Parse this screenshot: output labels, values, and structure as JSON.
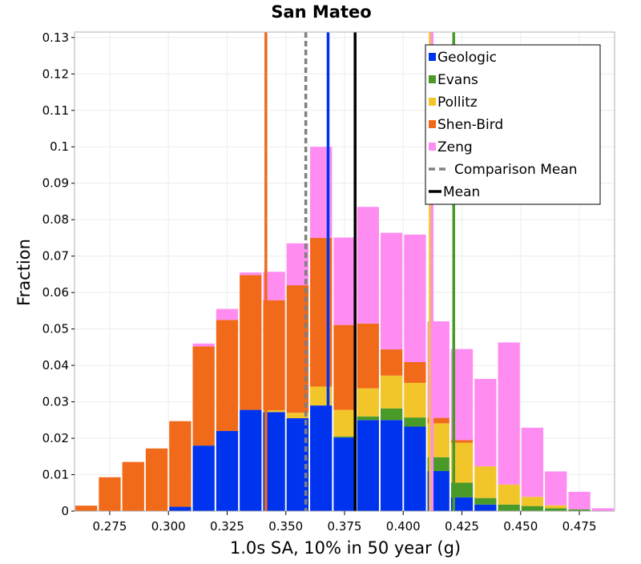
{
  "chart_data": {
    "type": "bar",
    "stacked": true,
    "title": "San Mateo",
    "xlabel": "1.0s SA, 10% in 50 year (g)",
    "ylabel": "Fraction",
    "xlim": [
      0.26,
      0.49
    ],
    "ylim": [
      0,
      0.1315
    ],
    "bin_width": 0.01,
    "grid": true,
    "legend_position": "top-right",
    "x_ticks": [
      0.275,
      0.3,
      0.325,
      0.35,
      0.375,
      0.4,
      0.425,
      0.45,
      0.475
    ],
    "x_tick_labels": [
      "0.275",
      "0.300",
      "0.325",
      "0.350",
      "0.375",
      "0.400",
      "0.425",
      "0.450",
      "0.475"
    ],
    "y_ticks": [
      0,
      0.01,
      0.02,
      0.03,
      0.04,
      0.05,
      0.06,
      0.07,
      0.08,
      0.09,
      0.1,
      0.11,
      0.12,
      0.13
    ],
    "y_tick_labels": [
      "0",
      "0.01",
      "0.02",
      "0.03",
      "0.04",
      "0.05",
      "0.06",
      "0.07",
      "0.08",
      "0.09",
      "0.1",
      "0.11",
      "0.12",
      "0.13"
    ],
    "bin_centers": [
      0.265,
      0.275,
      0.285,
      0.295,
      0.305,
      0.315,
      0.325,
      0.335,
      0.345,
      0.355,
      0.365,
      0.375,
      0.385,
      0.395,
      0.405,
      0.415,
      0.425,
      0.435,
      0.445,
      0.455,
      0.465,
      0.475,
      0.485
    ],
    "series": [
      {
        "name": "Geologic",
        "color": "#0033ee",
        "values": [
          0,
          0,
          0,
          0,
          0.0012,
          0.018,
          0.022,
          0.0278,
          0.0272,
          0.0255,
          0.029,
          0.0202,
          0.025,
          0.025,
          0.0232,
          0.011,
          0.0038,
          0.0018,
          0,
          0,
          0,
          0,
          0
        ]
      },
      {
        "name": "Evans",
        "color": "#4a9a2a",
        "values": [
          0,
          0,
          0,
          0,
          0,
          0,
          0,
          0,
          0,
          0,
          0,
          0.0003,
          0.001,
          0.0032,
          0.0025,
          0.0038,
          0.004,
          0.0018,
          0.0018,
          0.0014,
          0.0008,
          0.0005,
          0
        ]
      },
      {
        "name": "Pollitz",
        "color": "#f2c52a",
        "values": [
          0,
          0,
          0,
          0,
          0,
          0,
          0,
          0,
          0.0005,
          0.0015,
          0.0052,
          0.0073,
          0.0077,
          0.009,
          0.0095,
          0.0093,
          0.011,
          0.0087,
          0.0055,
          0.0025,
          0.0008,
          0,
          0
        ]
      },
      {
        "name": "Shen-Bird",
        "color": "#f06a1a",
        "values": [
          0.0015,
          0.0093,
          0.0135,
          0.0172,
          0.0235,
          0.0272,
          0.0305,
          0.037,
          0.0302,
          0.035,
          0.0408,
          0.0233,
          0.0178,
          0.0072,
          0.0057,
          0.0015,
          0.0007,
          0,
          0,
          0,
          0,
          0,
          0
        ]
      },
      {
        "name": "Zeng",
        "color": "#ff8cf0",
        "values": [
          0,
          0,
          0,
          0,
          0,
          0.0008,
          0.003,
          0.0007,
          0.0078,
          0.0115,
          0.025,
          0.024,
          0.032,
          0.032,
          0.035,
          0.0265,
          0.025,
          0.024,
          0.039,
          0.019,
          0.0093,
          0.0048,
          0.0008
        ]
      }
    ],
    "vertical_lines": [
      {
        "series": "Shen-Bird",
        "x": 0.3415,
        "color": "#f06a1a",
        "style": "solid"
      },
      {
        "series": "Comparison Mean",
        "x": 0.3585,
        "color": "#808080",
        "style": "dashed"
      },
      {
        "series": "Geologic",
        "x": 0.368,
        "color": "#0033ee",
        "style": "solid"
      },
      {
        "series": "Mean",
        "x": 0.3795,
        "color": "#000000",
        "style": "solid"
      },
      {
        "series": "Pollitz",
        "x": 0.4115,
        "color": "#f2c52a",
        "style": "solid"
      },
      {
        "series": "Zeng",
        "x": 0.4123,
        "color": "#ff8cf0",
        "style": "solid"
      },
      {
        "series": "Evans",
        "x": 0.4215,
        "color": "#4a9a2a",
        "style": "solid"
      }
    ],
    "legend": [
      {
        "label": "Geologic",
        "kind": "swatch",
        "color": "#0033ee"
      },
      {
        "label": "Evans",
        "kind": "swatch",
        "color": "#4a9a2a"
      },
      {
        "label": "Pollitz",
        "kind": "swatch",
        "color": "#f2c52a"
      },
      {
        "label": "Shen-Bird",
        "kind": "swatch",
        "color": "#f06a1a"
      },
      {
        "label": "Zeng",
        "kind": "swatch",
        "color": "#ff8cf0"
      },
      {
        "label": "Comparison Mean",
        "kind": "dashed-line",
        "color": "#808080"
      },
      {
        "label": "Mean",
        "kind": "solid-line",
        "color": "#000000"
      }
    ]
  }
}
